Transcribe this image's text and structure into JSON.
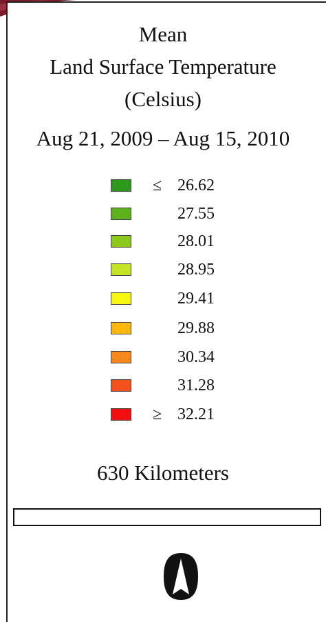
{
  "title": {
    "line1": "Mean",
    "line2": "Land Surface Temperature",
    "line3": "(Celsius)"
  },
  "date_range": "Aug 21, 2009 – Aug 15, 2010",
  "legend": [
    {
      "prefix": "≤",
      "value": "26.62",
      "color": "#2e9a1c"
    },
    {
      "prefix": "",
      "value": "27.55",
      "color": "#5db11c"
    },
    {
      "prefix": "",
      "value": "28.01",
      "color": "#8cc81c"
    },
    {
      "prefix": "",
      "value": "28.95",
      "color": "#c4e326"
    },
    {
      "prefix": "",
      "value": "29.41",
      "color": "#f7f70f"
    },
    {
      "prefix": "",
      "value": "29.88",
      "color": "#fdb80f"
    },
    {
      "prefix": "",
      "value": "30.34",
      "color": "#f7871c"
    },
    {
      "prefix": "",
      "value": "31.28",
      "color": "#f5511c"
    },
    {
      "prefix": "≥",
      "value": "32.21",
      "color": "#f30f0f"
    }
  ],
  "scale": {
    "label": "630 Kilometers"
  },
  "north_arrow": {
    "icon": "north-arrow-icon"
  }
}
